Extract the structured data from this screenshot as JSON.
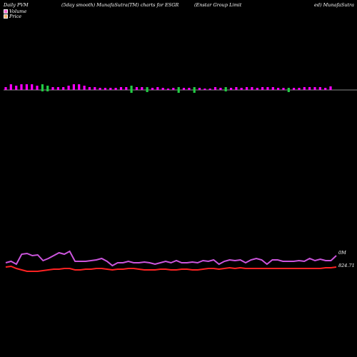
{
  "header": {
    "left": "Daily PVM",
    "middle": "(5day smooth) MunafaSutra(TM) charts for ESGR",
    "right_a": "(Enstar Group Limit",
    "right_b": "ed) MunafaSutra"
  },
  "legend": [
    {
      "label": "Volume",
      "color": "#ff66cc"
    },
    {
      "label": "Price",
      "color": "#ffaa66"
    }
  ],
  "colors": {
    "background": "#000000",
    "volume_up": "#ff00ff",
    "volume_down": "#22cc44",
    "baseline": "#888888",
    "volume_line": "#cc55dd",
    "price_line": "#ff2222"
  },
  "chart_data": {
    "type": "bar",
    "title": "",
    "volume_bars": {
      "direction": [
        "up",
        "up",
        "up",
        "up",
        "up",
        "up",
        "up",
        "down",
        "down",
        "up",
        "up",
        "up",
        "up",
        "up",
        "up",
        "up",
        "up",
        "up",
        "up",
        "up",
        "up",
        "up",
        "up",
        "up",
        "down",
        "up",
        "up",
        "down",
        "up",
        "up",
        "up",
        "up",
        "up",
        "down",
        "up",
        "up",
        "down",
        "up",
        "up",
        "up",
        "up",
        "up",
        "down",
        "up",
        "up",
        "up",
        "up",
        "up",
        "up",
        "up",
        "up",
        "up",
        "up",
        "up",
        "down",
        "up",
        "up",
        "up",
        "up",
        "up",
        "up",
        "up",
        "up"
      ],
      "values": [
        4,
        8,
        6,
        8,
        8,
        8,
        6,
        8,
        6,
        4,
        4,
        4,
        6,
        8,
        8,
        6,
        4,
        4,
        3,
        3,
        3,
        3,
        4,
        4,
        6,
        4,
        4,
        4,
        3,
        4,
        3,
        2,
        3,
        4,
        3,
        3,
        4,
        3,
        2,
        2,
        4,
        3,
        4,
        3,
        4,
        3,
        4,
        4,
        3,
        4,
        4,
        4,
        3,
        3,
        3,
        3,
        3,
        4,
        4,
        4,
        4,
        3,
        5
      ],
      "down_offsets": [
        0,
        0,
        0,
        0,
        0,
        0,
        0,
        2,
        2,
        0,
        0,
        0,
        0,
        0,
        0,
        0,
        0,
        0,
        0,
        0,
        0,
        0,
        0,
        0,
        4,
        0,
        0,
        3,
        0,
        0,
        0,
        0,
        0,
        4,
        0,
        0,
        4,
        0,
        0,
        0,
        0,
        0,
        2,
        0,
        0,
        0,
        0,
        0,
        0,
        0,
        0,
        0,
        0,
        0,
        3,
        0,
        0,
        0,
        0,
        0,
        0,
        0,
        0
      ]
    },
    "volume_line": [
      368,
      366,
      370,
      356,
      355,
      358,
      357,
      365,
      362,
      358,
      354,
      356,
      352,
      366,
      366,
      366,
      365,
      364,
      362,
      366,
      372,
      368,
      368,
      366,
      368,
      368,
      367,
      368,
      370,
      368,
      366,
      368,
      365,
      368,
      368,
      367,
      368,
      365,
      366,
      364,
      370,
      366,
      364,
      365,
      364,
      368,
      364,
      362,
      364,
      370,
      364,
      364,
      366,
      366,
      366,
      365,
      366,
      362,
      365,
      363,
      365,
      365,
      358
    ],
    "price_line": [
      374,
      373,
      376,
      378,
      380,
      380,
      380,
      379,
      378,
      377,
      377,
      376,
      376,
      378,
      378,
      377,
      377,
      376,
      376,
      377,
      378,
      377,
      377,
      376,
      376,
      377,
      378,
      378,
      378,
      377,
      377,
      378,
      378,
      377,
      377,
      378,
      378,
      377,
      376,
      376,
      377,
      376,
      375,
      376,
      375,
      376,
      376,
      376,
      376,
      376,
      376,
      376,
      376,
      376,
      376,
      376,
      376,
      376,
      376,
      376,
      375,
      375,
      374
    ],
    "labels": {
      "volume_end": "0M",
      "price_end": "824.71"
    }
  }
}
